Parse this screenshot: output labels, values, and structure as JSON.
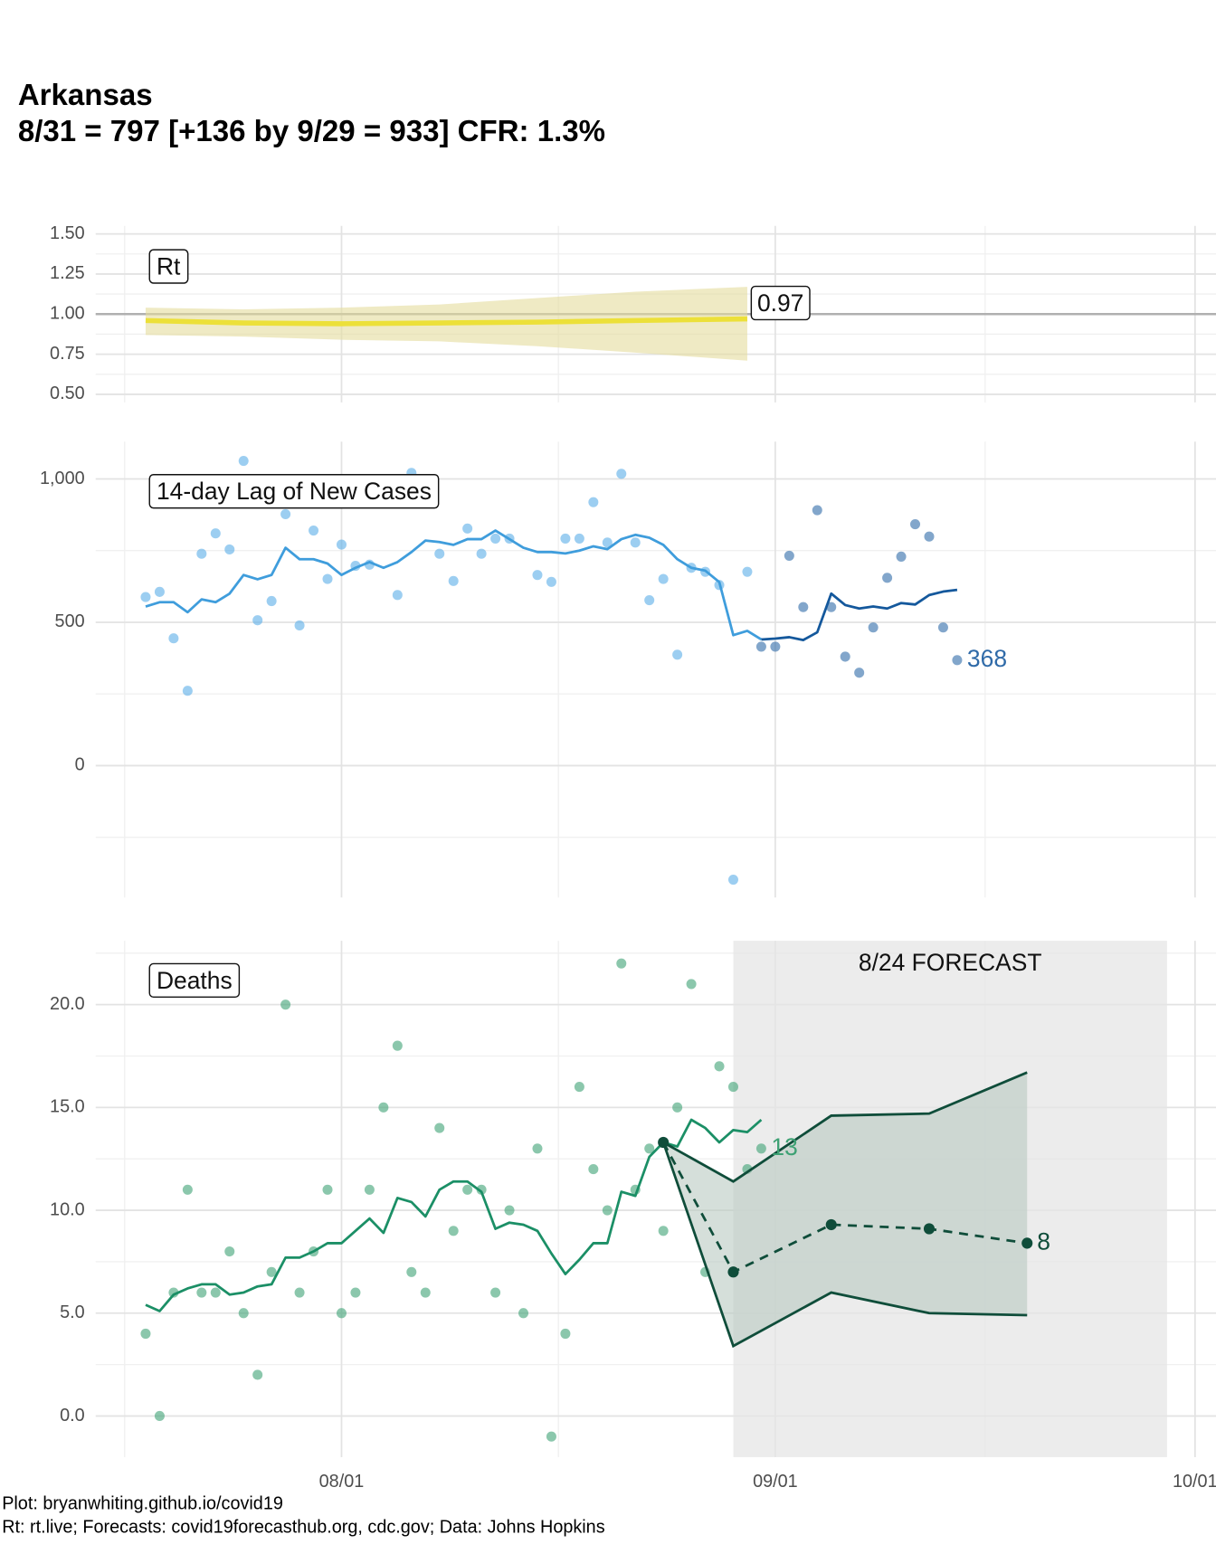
{
  "title": "Arkansas",
  "subtitle": "8/31 = 797 [+136 by 9/29 = 933] CFR: 1.3%",
  "caption": [
    "Plot: bryanwhiting.github.io/covid19",
    "Rt: rt.live; Forecasts: covid19forecasthub.org, cdc.gov; Data: Johns Hopkins"
  ],
  "x_axis": {
    "xlim": [
      "07/15",
      "10/02"
    ],
    "xticks": [
      "08/01",
      "09/01",
      "10/01"
    ]
  },
  "chart_data": [
    {
      "type": "line",
      "label": "Rt",
      "ylim": [
        0.45,
        1.55
      ],
      "reference_line": 1,
      "yticks": [
        {
          "value": 1.5,
          "label": "1.50"
        },
        {
          "value": 1.25,
          "label": "1.25"
        },
        {
          "value": 1,
          "label": "1.00"
        },
        {
          "value": 0.75,
          "label": "0.75"
        },
        {
          "value": 0.5,
          "label": "0.50"
        }
      ],
      "series": [
        {
          "kind": "band",
          "color": "#e4dc9c",
          "x": [
            "07/18",
            "07/25",
            "08/01",
            "08/08",
            "08/15",
            "08/22",
            "08/30"
          ],
          "lower": [
            0.87,
            0.86,
            0.84,
            0.83,
            0.8,
            0.76,
            0.71
          ],
          "upper": [
            1.04,
            1.03,
            1.04,
            1.06,
            1.1,
            1.14,
            1.17
          ]
        },
        {
          "kind": "line",
          "color": "#ece039",
          "width": 5,
          "label_last": true,
          "x": [
            "07/18",
            "07/25",
            "08/01",
            "08/08",
            "08/15",
            "08/22",
            "08/30"
          ],
          "values": [
            0.96,
            0.945,
            0.94,
            0.945,
            0.95,
            0.96,
            0.97
          ]
        }
      ]
    },
    {
      "type": "line",
      "label": "14-day Lag of New Cases",
      "ylim": [
        -460,
        1130
      ],
      "yticks": [
        {
          "value": 1000,
          "label": "1,000"
        },
        500,
        0
      ],
      "series": [
        {
          "kind": "points",
          "color": "#5aaee8",
          "x": [
            "07/18",
            "07/19",
            "07/20",
            "07/21",
            "07/22",
            "07/23",
            "07/24",
            "07/25",
            "07/26",
            "07/27",
            "07/28",
            "07/29",
            "07/30",
            "07/31",
            "08/01",
            "08/02",
            "08/03",
            "08/05",
            "08/06",
            "08/08",
            "08/09",
            "08/10",
            "08/11",
            "08/12",
            "08/13",
            "08/15",
            "08/16",
            "08/17",
            "08/18",
            "08/19",
            "08/20",
            "08/21",
            "08/22",
            "08/23",
            "08/24",
            "08/25",
            "08/26",
            "08/27",
            "08/28",
            "08/29",
            "08/30"
          ],
          "values": [
            588,
            606,
            444,
            261,
            739,
            810,
            754,
            1063,
            507,
            574,
            877,
            489,
            820,
            651,
            771,
            697,
            701,
            595,
            1021,
            739,
            644,
            827,
            739,
            792,
            792,
            665,
            641,
            792,
            792,
            919,
            778,
            1018,
            778,
            577,
            651,
            387,
            690,
            676,
            630,
            -398,
            676
          ]
        },
        {
          "kind": "line",
          "color": "#3f9ddc",
          "width": 2.5,
          "x": [
            "07/18",
            "07/19",
            "07/20",
            "07/21",
            "07/22",
            "07/23",
            "07/24",
            "07/25",
            "07/26",
            "07/27",
            "07/28",
            "07/29",
            "07/30",
            "07/31",
            "08/01",
            "08/02",
            "08/03",
            "08/04",
            "08/05",
            "08/06",
            "08/07",
            "08/08",
            "08/09",
            "08/10",
            "08/11",
            "08/12",
            "08/13",
            "08/14",
            "08/15",
            "08/16",
            "08/17",
            "08/18",
            "08/19",
            "08/20",
            "08/21",
            "08/22",
            "08/23",
            "08/24",
            "08/25",
            "08/26",
            "08/27",
            "08/28",
            "08/29",
            "08/30",
            "08/31"
          ],
          "values": [
            555,
            570,
            570,
            535,
            580,
            570,
            600,
            665,
            650,
            665,
            760,
            720,
            720,
            705,
            665,
            690,
            710,
            690,
            710,
            745,
            785,
            780,
            770,
            790,
            790,
            820,
            790,
            760,
            745,
            745,
            740,
            750,
            765,
            755,
            790,
            805,
            795,
            770,
            720,
            690,
            680,
            640,
            455,
            470,
            440
          ]
        },
        {
          "kind": "points",
          "color": "#2f6aa8",
          "label_last": true,
          "x": [
            "08/31",
            "09/01",
            "09/02",
            "09/03",
            "09/04",
            "09/05",
            "09/06",
            "09/07",
            "09/08",
            "09/09",
            "09/10",
            "09/11",
            "09/12",
            "09/13",
            "09/14"
          ],
          "values": [
            415,
            415,
            732,
            553,
            891,
            553,
            380,
            324,
            482,
            655,
            729,
            842,
            799,
            482,
            368
          ]
        },
        {
          "kind": "line",
          "color": "#14589c",
          "width": 2.5,
          "x": [
            "08/31",
            "09/01",
            "09/02",
            "09/03",
            "09/04",
            "09/05",
            "09/06",
            "09/07",
            "09/08",
            "09/09",
            "09/10",
            "09/11",
            "09/12",
            "09/13",
            "09/14"
          ],
          "values": [
            440,
            443,
            448,
            438,
            465,
            600,
            560,
            548,
            555,
            548,
            567,
            562,
            595,
            607,
            613
          ]
        }
      ]
    },
    {
      "type": "line",
      "label": "Deaths",
      "ylim": [
        -2,
        23.1
      ],
      "yticks": [
        {
          "value": 20,
          "label": "20.0"
        },
        {
          "value": 15,
          "label": "15.0"
        },
        {
          "value": 10,
          "label": "10.0"
        },
        {
          "value": 5,
          "label": "5.0"
        },
        {
          "value": 0,
          "label": "0.0"
        }
      ],
      "forecast_region": {
        "x": [
          "08/29",
          "09/29"
        ],
        "label": "8/24 FORECAST"
      },
      "series": [
        {
          "kind": "points",
          "color": "#3ea174",
          "label_last": true,
          "x": [
            "07/18",
            "07/19",
            "07/20",
            "07/21",
            "07/22",
            "07/23",
            "07/24",
            "07/25",
            "07/26",
            "07/27",
            "07/28",
            "07/29",
            "07/30",
            "07/31",
            "08/01",
            "08/02",
            "08/03",
            "08/04",
            "08/05",
            "08/06",
            "08/07",
            "08/08",
            "08/09",
            "08/10",
            "08/11",
            "08/12",
            "08/13",
            "08/14",
            "08/15",
            "08/16",
            "08/17",
            "08/18",
            "08/19",
            "08/20",
            "08/21",
            "08/22",
            "08/23",
            "08/24",
            "08/25",
            "08/26",
            "08/27",
            "08/28",
            "08/29",
            "08/30",
            "08/31"
          ],
          "values": [
            4,
            0,
            6,
            11,
            6,
            6,
            8,
            5,
            2,
            7,
            20,
            6,
            8,
            11,
            5,
            6,
            11,
            15,
            18,
            7,
            6,
            14,
            9,
            11,
            11,
            6,
            10,
            5,
            13,
            -1,
            4,
            16,
            12,
            10,
            22,
            11,
            13,
            9,
            15,
            21,
            7,
            17,
            16,
            12,
            13
          ]
        },
        {
          "kind": "line",
          "color": "#1b8f66",
          "width": 2.5,
          "x": [
            "07/18",
            "07/19",
            "07/20",
            "07/21",
            "07/22",
            "07/23",
            "07/24",
            "07/25",
            "07/26",
            "07/27",
            "07/28",
            "07/29",
            "07/30",
            "07/31",
            "08/01",
            "08/02",
            "08/03",
            "08/04",
            "08/05",
            "08/06",
            "08/07",
            "08/08",
            "08/09",
            "08/10",
            "08/11",
            "08/12",
            "08/13",
            "08/14",
            "08/15",
            "08/16",
            "08/17",
            "08/18",
            "08/19",
            "08/20",
            "08/21",
            "08/22",
            "08/23",
            "08/24",
            "08/25",
            "08/26",
            "08/27",
            "08/28",
            "08/29",
            "08/30",
            "08/31"
          ],
          "values": [
            5.4,
            5.1,
            5.9,
            6.2,
            6.4,
            6.4,
            5.9,
            6,
            6.3,
            6.4,
            7.7,
            7.7,
            8,
            8.4,
            8.4,
            9,
            9.6,
            8.9,
            10.6,
            10.4,
            9.7,
            11,
            11.4,
            11.4,
            10.9,
            9.1,
            9.4,
            9.3,
            9,
            7.9,
            6.9,
            7.6,
            8.4,
            8.4,
            10.9,
            10.7,
            12.6,
            13.3,
            13.1,
            14.4,
            14,
            13.3,
            13.9,
            13.8,
            14.4
          ]
        },
        {
          "kind": "band",
          "color": "#b9c9c2",
          "stroke": "#0f4d3a",
          "x": [
            "08/24",
            "08/29",
            "09/05",
            "09/12",
            "09/19"
          ],
          "lower": [
            13.3,
            3.4,
            6,
            5,
            4.9
          ],
          "upper": [
            13.3,
            11.4,
            14.6,
            14.7,
            16.7
          ]
        },
        {
          "kind": "line",
          "color": "#0f4d3a",
          "width": 2.5,
          "dashed": true,
          "markers": true,
          "end_label": "8",
          "x": [
            "08/24",
            "08/29",
            "09/05",
            "09/12",
            "09/19"
          ],
          "values": [
            13.3,
            7,
            9.3,
            9.1,
            8.4
          ]
        }
      ]
    }
  ]
}
